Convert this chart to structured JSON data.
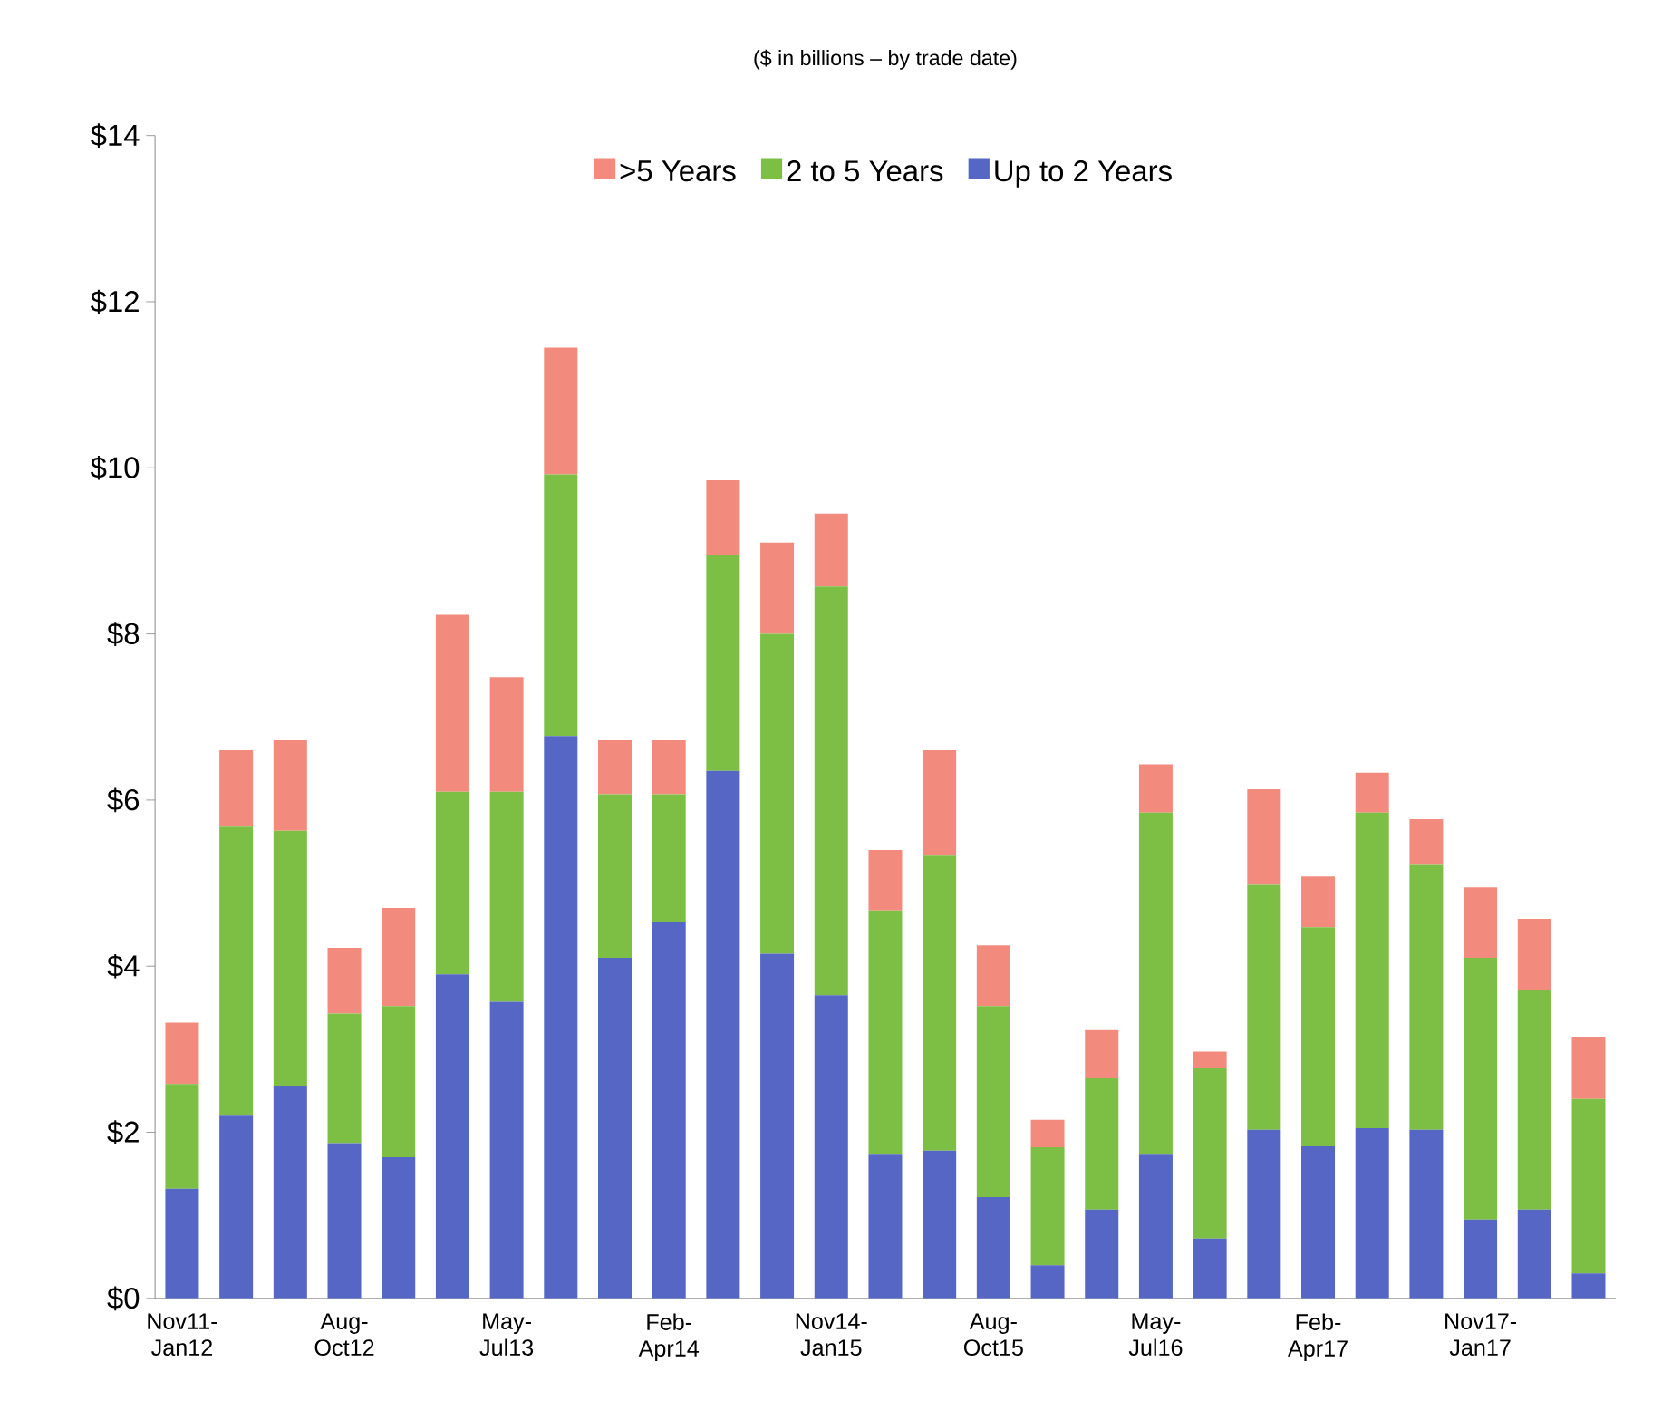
{
  "chart_data": {
    "type": "bar",
    "title": "($ in billions – by trade date)",
    "stacked": true,
    "legend": "top",
    "categories": [
      "Nov11- Jan12",
      null,
      null,
      "Aug- Oct12",
      null,
      null,
      "May- Jul13",
      null,
      null,
      "Feb- Apr14",
      null,
      null,
      "Nov14- Jan15",
      null,
      null,
      "Aug- Oct15",
      null,
      null,
      "May- Jul16",
      null,
      null,
      "Feb- Apr17",
      null,
      null,
      "Nov17- Jan17",
      null,
      null
    ],
    "series": [
      {
        "name": "Up to 2 Years",
        "color": "#5566c4",
        "values": [
          1.32,
          2.2,
          2.55,
          1.87,
          1.7,
          3.9,
          3.57,
          6.77,
          4.1,
          4.53,
          6.35,
          4.15,
          3.65,
          1.73,
          1.78,
          1.22,
          0.4,
          1.07,
          1.73,
          0.72,
          2.03,
          1.83,
          2.05,
          2.03,
          0.95,
          1.07,
          0.3
        ]
      },
      {
        "name": "2 to 5 Years",
        "color": "#7dbf45",
        "values": [
          1.26,
          3.48,
          3.08,
          1.56,
          1.82,
          2.2,
          2.53,
          3.15,
          1.97,
          1.54,
          2.6,
          3.85,
          4.92,
          2.94,
          3.55,
          2.3,
          1.42,
          1.58,
          4.12,
          2.05,
          2.95,
          2.64,
          3.8,
          3.19,
          3.15,
          2.65,
          2.1
        ]
      },
      {
        "name": ">5 Years",
        "color": "#f28b7e",
        "values": [
          0.74,
          0.92,
          1.09,
          0.79,
          1.18,
          2.13,
          1.38,
          1.53,
          0.65,
          0.65,
          0.9,
          1.1,
          0.88,
          0.73,
          1.27,
          0.73,
          0.33,
          0.58,
          0.58,
          0.2,
          1.15,
          0.61,
          0.48,
          0.55,
          0.85,
          0.85,
          0.75
        ]
      }
    ],
    "ylim": [
      0,
      14
    ],
    "yticks": [
      {
        "value": 0,
        "label": "$0"
      },
      {
        "value": 2,
        "label": "$2"
      },
      {
        "value": 4,
        "label": "$4"
      },
      {
        "value": 6,
        "label": "$6"
      },
      {
        "value": 8,
        "label": "$8"
      },
      {
        "value": 10,
        "label": "$10"
      },
      {
        "value": 12,
        "label": "$12"
      },
      {
        "value": 14,
        "label": "$14"
      }
    ]
  }
}
